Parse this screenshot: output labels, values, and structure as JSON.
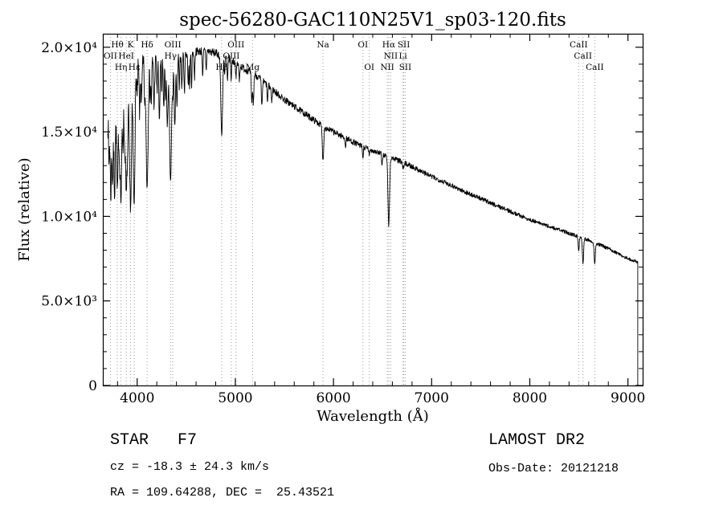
{
  "chart_data": {
    "type": "line",
    "title": "spec-56280-GAC110N25V1_sp03-120.fits",
    "xlabel": "Wavelength (Å)",
    "ylabel": "Flux (relative)",
    "xlim": [
      3650,
      9150
    ],
    "ylim": [
      0,
      20800
    ],
    "grid": false,
    "x_major_ticks": [
      4000,
      5000,
      6000,
      7000,
      8000,
      9000
    ],
    "x_minor_step": 200,
    "y_major_ticks": [
      0,
      5000,
      10000,
      15000,
      20000
    ],
    "y_minor_step": 1000,
    "y_tick_labels": [
      "0",
      "5.0×10³",
      "1.0×10⁴",
      "1.5×10⁴",
      "2.0×10⁴"
    ],
    "continuum": [
      [
        3700,
        16200
      ],
      [
        3750,
        16800
      ],
      [
        3800,
        17300
      ],
      [
        3850,
        17700
      ],
      [
        3900,
        18100
      ],
      [
        3950,
        18400
      ],
      [
        4000,
        18700
      ],
      [
        4100,
        19000
      ],
      [
        4200,
        19200
      ],
      [
        4300,
        19300
      ],
      [
        4400,
        19400
      ],
      [
        4500,
        19600
      ],
      [
        4600,
        19750
      ],
      [
        4700,
        19800
      ],
      [
        4800,
        19650
      ],
      [
        4900,
        19450
      ],
      [
        5000,
        19100
      ],
      [
        5100,
        18700
      ],
      [
        5200,
        18400
      ],
      [
        5300,
        17900
      ],
      [
        5400,
        17400
      ],
      [
        5500,
        16900
      ],
      [
        5600,
        16500
      ],
      [
        5700,
        16100
      ],
      [
        5800,
        15700
      ],
      [
        5900,
        15300
      ],
      [
        6000,
        15000
      ],
      [
        6100,
        14700
      ],
      [
        6200,
        14400
      ],
      [
        6300,
        14100
      ],
      [
        6400,
        13900
      ],
      [
        6500,
        13650
      ],
      [
        6600,
        13450
      ],
      [
        6700,
        13200
      ],
      [
        6800,
        12950
      ],
      [
        6900,
        12650
      ],
      [
        7000,
        12350
      ],
      [
        7100,
        12100
      ],
      [
        7200,
        11850
      ],
      [
        7300,
        11550
      ],
      [
        7400,
        11300
      ],
      [
        7500,
        11050
      ],
      [
        7600,
        10800
      ],
      [
        7700,
        10550
      ],
      [
        7800,
        10300
      ],
      [
        7900,
        10050
      ],
      [
        8000,
        9800
      ],
      [
        8100,
        9600
      ],
      [
        8200,
        9400
      ],
      [
        8300,
        9200
      ],
      [
        8400,
        9000
      ],
      [
        8500,
        8800
      ],
      [
        8600,
        8600
      ],
      [
        8700,
        8350
      ],
      [
        8800,
        8100
      ],
      [
        8900,
        7800
      ],
      [
        9000,
        7500
      ],
      [
        9100,
        7300
      ]
    ],
    "absorption_lines": [
      [
        3712,
        0.2,
        5
      ],
      [
        3727,
        0.18,
        5
      ],
      [
        3734,
        0.22,
        5
      ],
      [
        3750,
        0.28,
        6
      ],
      [
        3770,
        0.32,
        7
      ],
      [
        3798,
        0.35,
        8
      ],
      [
        3819,
        0.18,
        5
      ],
      [
        3835,
        0.38,
        8
      ],
      [
        3856,
        0.18,
        5
      ],
      [
        3871,
        0.15,
        5
      ],
      [
        3889,
        0.38,
        9
      ],
      [
        3905,
        0.15,
        5
      ],
      [
        3920,
        0.12,
        4
      ],
      [
        3933,
        0.42,
        9
      ],
      [
        3968,
        0.42,
        9
      ],
      [
        4000,
        0.1,
        4
      ],
      [
        4026,
        0.15,
        5
      ],
      [
        4045,
        0.12,
        4
      ],
      [
        4077,
        0.12,
        4
      ],
      [
        4101,
        0.38,
        10
      ],
      [
        4132,
        0.1,
        4
      ],
      [
        4144,
        0.12,
        4
      ],
      [
        4172,
        0.14,
        5
      ],
      [
        4202,
        0.1,
        4
      ],
      [
        4226,
        0.18,
        6
      ],
      [
        4250,
        0.1,
        4
      ],
      [
        4271,
        0.15,
        5
      ],
      [
        4290,
        0.12,
        4
      ],
      [
        4308,
        0.2,
        7
      ],
      [
        4340,
        0.38,
        10
      ],
      [
        4363,
        0.1,
        4
      ],
      [
        4383,
        0.22,
        6
      ],
      [
        4405,
        0.16,
        5
      ],
      [
        4430,
        0.1,
        4
      ],
      [
        4455,
        0.1,
        4
      ],
      [
        4481,
        0.12,
        4
      ],
      [
        4520,
        0.1,
        4
      ],
      [
        4534,
        0.1,
        4
      ],
      [
        4554,
        0.1,
        4
      ],
      [
        4584,
        0.08,
        4
      ],
      [
        4668,
        0.08,
        4
      ],
      [
        4703,
        0.06,
        4
      ],
      [
        4861,
        0.24,
        9
      ],
      [
        4891,
        0.06,
        4
      ],
      [
        4920,
        0.08,
        4
      ],
      [
        4957,
        0.06,
        4
      ],
      [
        5007,
        0.05,
        4
      ],
      [
        5041,
        0.05,
        4
      ],
      [
        5167,
        0.1,
        5
      ],
      [
        5183,
        0.1,
        5
      ],
      [
        5270,
        0.09,
        5
      ],
      [
        5328,
        0.06,
        4
      ],
      [
        5371,
        0.05,
        4
      ],
      [
        5893,
        0.13,
        7
      ],
      [
        6122,
        0.04,
        4
      ],
      [
        6300,
        0.05,
        4
      ],
      [
        6365,
        0.03,
        4
      ],
      [
        6495,
        0.05,
        4
      ],
      [
        6563,
        0.3,
        8
      ],
      [
        6707,
        0.03,
        3
      ],
      [
        6716,
        0.03,
        3
      ],
      [
        8498,
        0.1,
        5
      ],
      [
        8542,
        0.17,
        6
      ],
      [
        8662,
        0.15,
        6
      ]
    ],
    "line_markers": [
      {
        "label": "Hθ",
        "wl": 3798,
        "row": 1
      },
      {
        "label": "K",
        "wl": 3933,
        "row": 1
      },
      {
        "label": "Hδ",
        "wl": 4101,
        "row": 1
      },
      {
        "label": "OIII",
        "wl": 4363,
        "row": 1
      },
      {
        "label": "OIII",
        "wl": 5007,
        "row": 1
      },
      {
        "label": "Na",
        "wl": 5893,
        "row": 1
      },
      {
        "label": "OI",
        "wl": 6300,
        "row": 1
      },
      {
        "label": "Hα",
        "wl": 6563,
        "row": 1
      },
      {
        "label": "SII",
        "wl": 6716,
        "row": 1
      },
      {
        "label": "CaII",
        "wl": 8498,
        "row": 1
      },
      {
        "label": "OII",
        "wl": 3727,
        "row": 2
      },
      {
        "label": "HeI",
        "wl": 3889,
        "row": 2
      },
      {
        "label": "Hγ",
        "wl": 4340,
        "row": 2
      },
      {
        "label": "OIII",
        "wl": 4959,
        "row": 2
      },
      {
        "label": "NII",
        "wl": 6583,
        "row": 2
      },
      {
        "label": "Li",
        "wl": 6708,
        "row": 2
      },
      {
        "label": "CaII",
        "wl": 8542,
        "row": 2
      },
      {
        "label": "Hη",
        "wl": 3835,
        "row": 3
      },
      {
        "label": "Hε",
        "wl": 3970,
        "row": 3
      },
      {
        "label": "Hβ",
        "wl": 4861,
        "row": 3
      },
      {
        "label": "Mg",
        "wl": 5175,
        "row": 3
      },
      {
        "label": "OI",
        "wl": 6365,
        "row": 3
      },
      {
        "label": "NII",
        "wl": 6548,
        "row": 3
      },
      {
        "label": "SII",
        "wl": 6731,
        "row": 3
      },
      {
        "label": "CaII",
        "wl": 8662,
        "row": 3
      }
    ],
    "spectrum_start_wl": 3700,
    "spectrum_end_wl": 9100,
    "end_drop_to": 0,
    "noise": {
      "seed": 7,
      "base": 0.012,
      "blue_extra": 0.06
    },
    "line_color": "#000000",
    "marker_line_color": "#9a9a9a"
  },
  "footer": {
    "object_type": "STAR   F7",
    "survey": "LAMOST DR2",
    "velocity": "cz = -18.3 ± 24.3 km/s",
    "obs_date": "Obs-Date: 20121218",
    "coords": "RA = 109.64288, DEC =  25.43521"
  }
}
